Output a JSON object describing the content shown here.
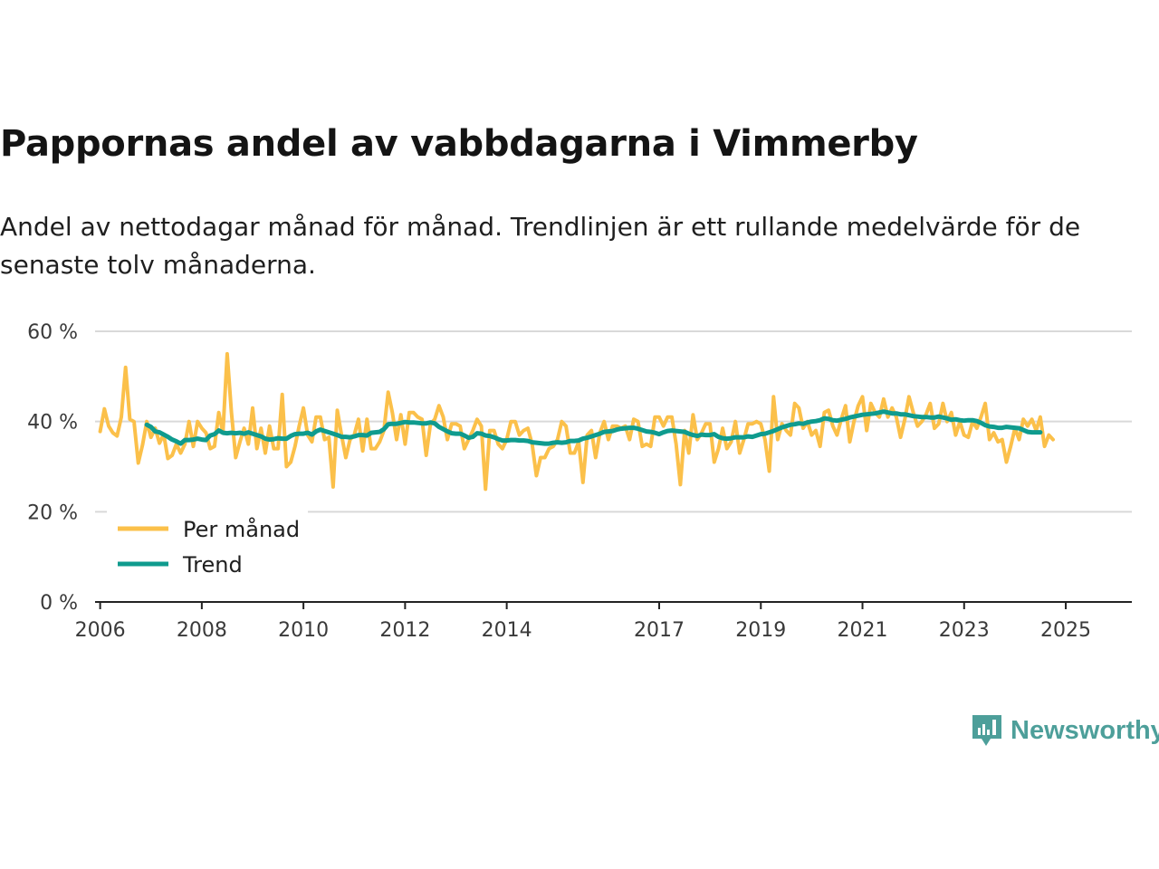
{
  "title": "Pappornas andel av vabbdagarna i Vimmerby",
  "subtitle": "Andel av nettodagar månad för månad. Trendlinjen är ett rullande medelvärde för de senaste tolv månaderna.",
  "brand": {
    "name": "Newsworthy",
    "color": "#4d9f9a"
  },
  "chart_data": {
    "type": "line",
    "title": "Pappornas andel av vabbdagarna i Vimmerby",
    "xlabel": "",
    "ylabel": "",
    "ylim": [
      0,
      60
    ],
    "xlim": [
      2005.9,
      2026.3
    ],
    "y_ticks": [
      0,
      20,
      40,
      60
    ],
    "y_tick_labels": [
      "0 %",
      "20 %",
      "40 %",
      "60 %"
    ],
    "x_ticks": [
      2006,
      2008,
      2010,
      2012,
      2014,
      2017,
      2019,
      2021,
      2023,
      2025
    ],
    "x_tick_labels": [
      "2006",
      "2008",
      "2010",
      "2012",
      "2014",
      "2017",
      "2019",
      "2021",
      "2023",
      "2025"
    ],
    "grid": true,
    "legend_position": "bottom-left",
    "series": [
      {
        "name": "Per månad",
        "color": "#fbc04a",
        "x_start": 2006.0,
        "x_step": 0.08333,
        "values": [
          37.8,
          42.8,
          39.0,
          37.5,
          36.8,
          41.0,
          52.0,
          40.5,
          40.0,
          30.8,
          34.8,
          40.0,
          36.5,
          38.5,
          35.2,
          37.2,
          31.8,
          32.5,
          35.0,
          33.0,
          35.0,
          40.0,
          34.5,
          40.0,
          38.5,
          37.5,
          34.0,
          34.5,
          42.0,
          37.5,
          55.0,
          42.0,
          32.0,
          35.5,
          38.5,
          35.0,
          43.0,
          34.0,
          38.5,
          33.0,
          39.0,
          34.0,
          34.0,
          46.0,
          30.0,
          31.0,
          34.5,
          39.0,
          43.0,
          37.0,
          35.5,
          41.0,
          41.0,
          36.0,
          36.5,
          25.5,
          42.5,
          37.0,
          32.0,
          36.0,
          37.0,
          40.5,
          33.5,
          40.5,
          34.0,
          34.0,
          35.5,
          38.0,
          46.5,
          42.0,
          36.0,
          41.5,
          35.0,
          42.0,
          42.0,
          41.0,
          40.5,
          32.5,
          39.5,
          40.5,
          43.5,
          41.0,
          36.0,
          39.5,
          39.5,
          39.0,
          34.0,
          36.0,
          38.0,
          40.5,
          39.0,
          25.0,
          38.0,
          38.0,
          35.0,
          34.0,
          36.0,
          40.0,
          40.0,
          37.0,
          38.0,
          38.5,
          35.0,
          28.0,
          32.0,
          32.0,
          34.0,
          34.5,
          36.0,
          40.0,
          39.0,
          33.0,
          33.0,
          35.5,
          26.5,
          37.0,
          38.0,
          32.0,
          37.5,
          40.0,
          36.0,
          39.0,
          39.0,
          38.5,
          39.0,
          36.0,
          40.5,
          40.0,
          34.5,
          35.0,
          34.5,
          41.0,
          41.0,
          39.0,
          41.0,
          41.0,
          35.0,
          26.0,
          38.0,
          33.0,
          41.5,
          36.0,
          37.5,
          39.5,
          39.5,
          31.0,
          34.0,
          38.5,
          34.0,
          35.5,
          40.0,
          33.0,
          36.0,
          39.5,
          39.5,
          40.0,
          39.5,
          36.0,
          29.0,
          45.5,
          36.0,
          39.5,
          38.0,
          37.0,
          44.0,
          43.0,
          38.5,
          40.0,
          37.0,
          38.0,
          34.5,
          42.0,
          42.5,
          39.0,
          37.0,
          40.5,
          43.5,
          35.5,
          40.0,
          43.5,
          45.5,
          38.0,
          44.0,
          42.0,
          41.0,
          45.0,
          41.0,
          43.0,
          41.0,
          36.5,
          40.5,
          45.5,
          42.0,
          39.0,
          40.0,
          41.5,
          44.0,
          38.5,
          39.5,
          44.0,
          40.0,
          42.0,
          37.0,
          40.0,
          37.0,
          36.5,
          40.0,
          38.5,
          41.0,
          44.0,
          36.0,
          37.5,
          35.5,
          36.0,
          31.0,
          34.5,
          38.5,
          36.0,
          40.5,
          39.0,
          40.5,
          38.0,
          41.0,
          34.5,
          37.0,
          36.0
        ]
      },
      {
        "name": "Trend",
        "color": "#0f9b8e",
        "x_start": 2006.9167,
        "x_step": 0.08333,
        "values": [
          39.3,
          38.8,
          37.8,
          37.6,
          37.1,
          36.6,
          36.0,
          35.6,
          35.1,
          35.9,
          35.9,
          36.0,
          36.2,
          36.0,
          35.9,
          36.9,
          37.2,
          38.0,
          37.5,
          37.4,
          37.5,
          37.4,
          37.5,
          37.3,
          37.6,
          37.3,
          37.0,
          36.7,
          36.2,
          36.0,
          36.1,
          36.3,
          36.2,
          36.2,
          36.8,
          37.2,
          37.3,
          37.3,
          37.5,
          37.1,
          37.8,
          38.2,
          37.9,
          37.6,
          37.3,
          37.0,
          36.6,
          36.6,
          36.5,
          36.7,
          37.0,
          37.0,
          36.9,
          37.5,
          37.6,
          37.7,
          38.3,
          39.4,
          39.5,
          39.5,
          39.7,
          39.9,
          39.8,
          39.8,
          39.7,
          39.6,
          39.6,
          39.8,
          39.6,
          38.8,
          38.3,
          37.8,
          37.4,
          37.3,
          37.3,
          36.9,
          36.4,
          36.6,
          37.4,
          37.3,
          36.9,
          36.8,
          36.5,
          36.1,
          35.8,
          35.8,
          35.9,
          35.9,
          35.8,
          35.8,
          35.7,
          35.4,
          35.3,
          35.2,
          35.1,
          35.1,
          35.3,
          35.4,
          35.3,
          35.4,
          35.7,
          35.7,
          35.8,
          36.2,
          36.4,
          36.7,
          37.0,
          37.3,
          37.7,
          37.8,
          37.9,
          38.2,
          38.4,
          38.5,
          38.6,
          38.6,
          38.4,
          38.1,
          37.8,
          37.7,
          37.5,
          37.2,
          37.6,
          37.9,
          38.0,
          37.9,
          37.8,
          37.7,
          37.3,
          37.0,
          36.8,
          37.1,
          37.0,
          37.0,
          37.2,
          36.6,
          36.3,
          36.2,
          36.3,
          36.5,
          36.5,
          36.5,
          36.7,
          36.6,
          36.9,
          37.2,
          37.3,
          37.6,
          37.9,
          38.3,
          38.7,
          39.0,
          39.3,
          39.4,
          39.6,
          39.5,
          39.8,
          40.0,
          40.1,
          40.3,
          40.7,
          40.6,
          40.3,
          40.2,
          40.4,
          40.6,
          40.9,
          41.1,
          41.3,
          41.5,
          41.6,
          41.7,
          41.8,
          42.0,
          42.2,
          42.0,
          41.8,
          41.8,
          41.6,
          41.6,
          41.4,
          41.2,
          41.1,
          41.0,
          41.0,
          40.9,
          40.9,
          41.1,
          40.9,
          40.7,
          40.4,
          40.5,
          40.3,
          40.2,
          40.3,
          40.3,
          40.1,
          39.7,
          39.2,
          38.9,
          38.8,
          38.6,
          38.6,
          38.8,
          38.7,
          38.6,
          38.5,
          38.1,
          37.7,
          37.6,
          37.6,
          37.6
        ]
      }
    ]
  }
}
